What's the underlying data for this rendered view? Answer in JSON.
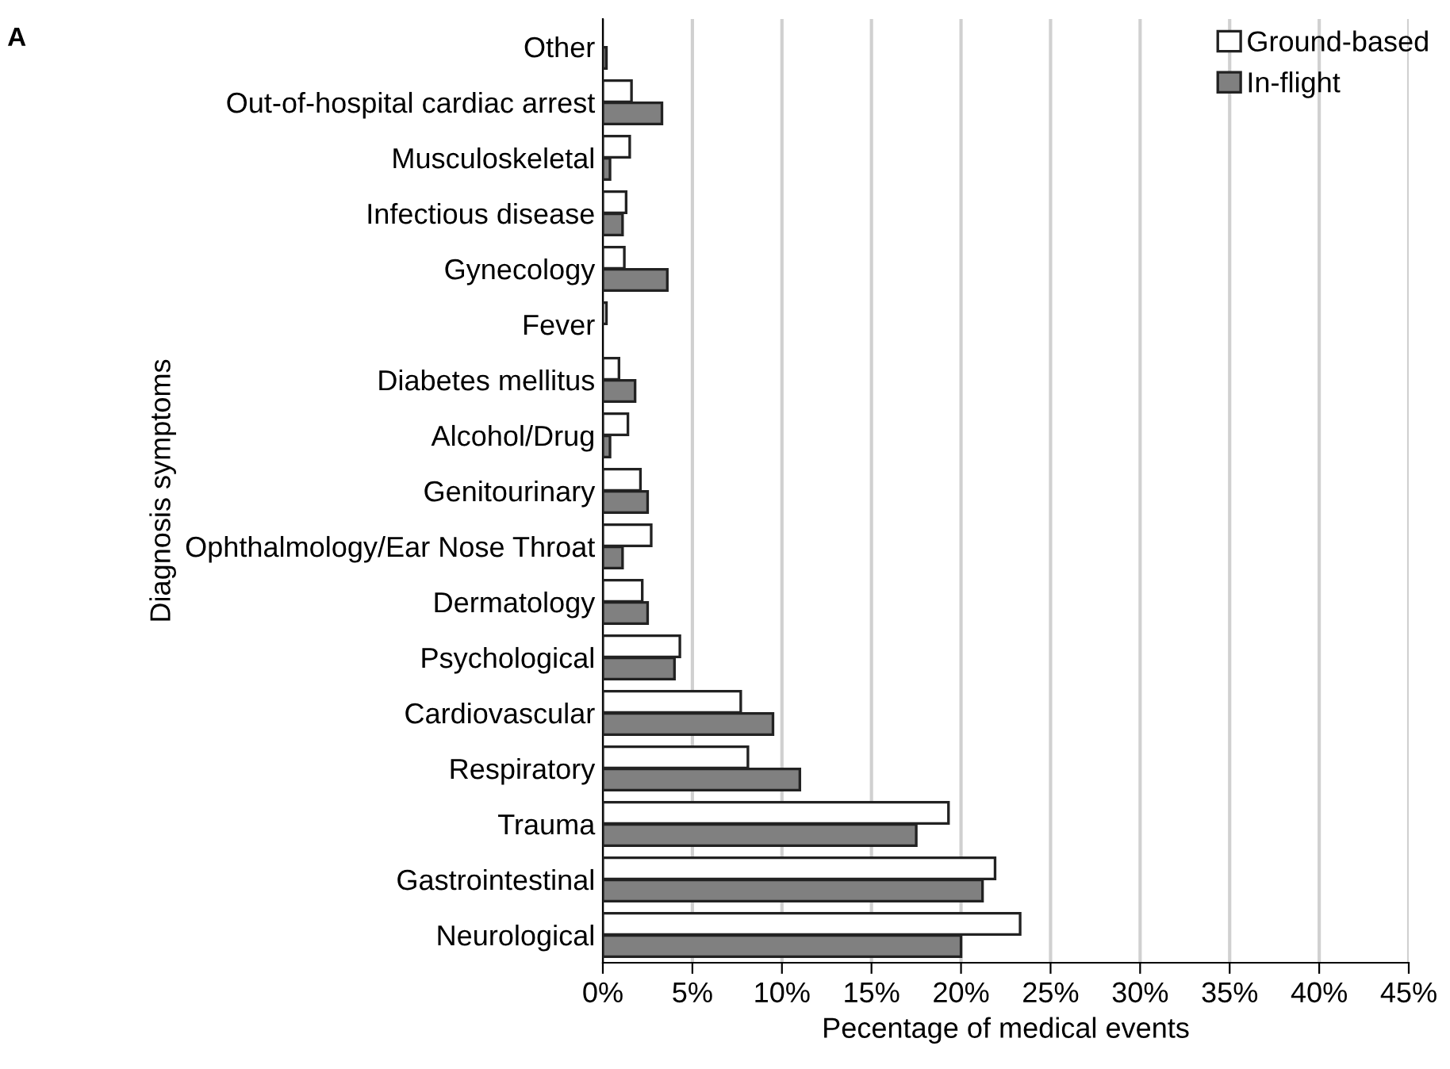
{
  "chart_data": {
    "type": "bar",
    "orientation": "horizontal",
    "annotations": [
      "A"
    ],
    "xlabel": "Pecentage of medical events",
    "ylabel": "Diagnosis symptoms",
    "categories": [
      "Other",
      "Out-of-hospital cardiac arrest",
      "Musculoskeletal",
      "Infectious disease",
      "Gynecology",
      "Fever",
      "Diabetes mellitus",
      "Alcohol/Drug",
      "Genitourinary",
      "Ophthalmology/Ear Nose Throat",
      "Dermatology",
      "Psychological",
      "Cardiovascular",
      "Respiratory",
      "Trauma",
      "Gastrointestinal",
      "Neurological"
    ],
    "series": [
      {
        "name": "Ground-based",
        "color": "#ffffff",
        "values": [
          null,
          1.6,
          1.5,
          1.3,
          1.2,
          0.2,
          0.9,
          1.4,
          2.1,
          2.7,
          2.2,
          4.3,
          7.7,
          8.1,
          19.3,
          21.9,
          23.3
        ]
      },
      {
        "name": "In-flight",
        "color": "#808080",
        "values": [
          0.2,
          3.3,
          0.4,
          1.1,
          3.6,
          null,
          1.8,
          0.4,
          2.5,
          1.1,
          2.5,
          4.0,
          9.5,
          11.0,
          17.5,
          21.2,
          20.0
        ]
      }
    ],
    "xlim": [
      0,
      45
    ],
    "xticks": [
      {
        "value": 0,
        "label": "0%"
      },
      {
        "value": 5,
        "label": "5%"
      },
      {
        "value": 10,
        "label": "10%"
      },
      {
        "value": 15,
        "label": "15%"
      },
      {
        "value": 20,
        "label": "20%"
      },
      {
        "value": 25,
        "label": "25%"
      },
      {
        "value": 30,
        "label": "30%"
      },
      {
        "value": 35,
        "label": "35%"
      },
      {
        "value": 40,
        "label": "40%"
      },
      {
        "value": 45,
        "label": "45%"
      }
    ],
    "grid": "x",
    "legend": "top right"
  }
}
